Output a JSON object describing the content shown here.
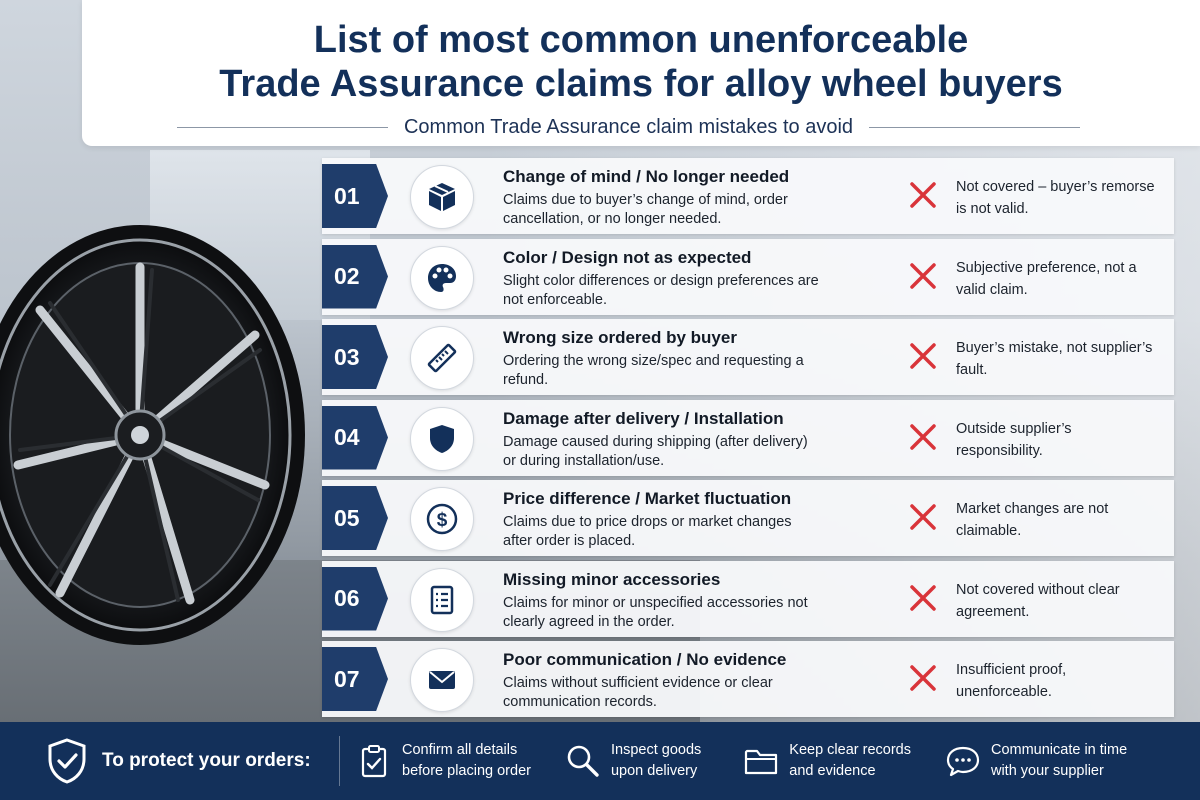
{
  "header": {
    "title_line1": "List of most common unenforceable",
    "title_line2": "Trade Assurance claims for alloy wheel buyers",
    "subtitle": "Common Trade Assurance claim mistakes to avoid"
  },
  "rows": [
    {
      "number": "01",
      "icon": "box-icon",
      "title": "Change of mind / No longer needed",
      "desc": "Claims due to buyer’s change of mind, order cancellation, or no longer needed.",
      "note": "Not covered – buyer’s remorse is not valid."
    },
    {
      "number": "02",
      "icon": "palette-icon",
      "title": "Color / Design not as expected",
      "desc": "Slight color differences or design preferences are not enforceable.",
      "note": "Subjective preference, not a valid claim."
    },
    {
      "number": "03",
      "icon": "ruler-icon",
      "title": "Wrong size ordered by buyer",
      "desc": "Ordering the wrong size/spec and requesting a refund.",
      "note": "Buyer’s mistake, not supplier’s fault."
    },
    {
      "number": "04",
      "icon": "shield-icon",
      "title": "Damage after delivery / Installation",
      "desc": "Damage caused during shipping (after delivery) or during installation/use.",
      "note": "Outside supplier’s responsibility."
    },
    {
      "number": "05",
      "icon": "dollar-icon",
      "title": "Price difference / Market fluctuation",
      "desc": "Claims due to price drops or market changes after order is placed.",
      "note": "Market changes are not claimable."
    },
    {
      "number": "06",
      "icon": "checklist-icon",
      "title": "Missing minor accessories",
      "desc": "Claims for minor or unspecified accessories not clearly agreed in the order.",
      "note": "Not covered without clear agreement."
    },
    {
      "number": "07",
      "icon": "envelope-icon",
      "title": "Poor communication / No evidence",
      "desc": "Claims without sufficient evidence or clear communication records.",
      "note": "Insufficient proof, unenforceable."
    }
  ],
  "footer": {
    "protect_label": "To protect your orders:",
    "tips": [
      {
        "icon": "clipboard-check-icon",
        "text": "Confirm all details\nbefore placing order"
      },
      {
        "icon": "magnifier-icon",
        "text": "Inspect goods\nupon delivery"
      },
      {
        "icon": "folder-icon",
        "text": "Keep clear records\nand evidence"
      },
      {
        "icon": "chat-bubble-icon",
        "text": "Communicate in time\nwith your supplier"
      }
    ]
  },
  "colors": {
    "navy": "#13305a",
    "tag": "#1f3d6b",
    "cross": "#d9343a"
  }
}
